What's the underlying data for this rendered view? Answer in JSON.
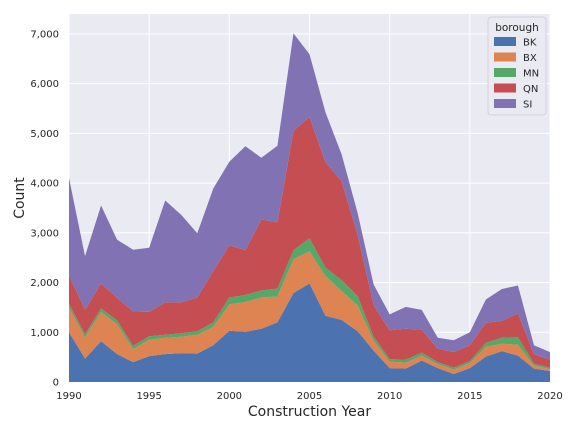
{
  "chart_data": {
    "type": "area",
    "stacked": true,
    "xlabel": "Construction Year",
    "ylabel": "Count",
    "xlim": [
      1990,
      2020
    ],
    "ylim": [
      0,
      7400
    ],
    "xticks": [
      1990,
      1995,
      2000,
      2005,
      2010,
      2015,
      2020
    ],
    "xtick_labels": [
      "1990",
      "1995",
      "2000",
      "2005",
      "2010",
      "2015",
      "2020"
    ],
    "yticks": [
      0,
      1000,
      2000,
      3000,
      4000,
      5000,
      6000,
      7000
    ],
    "ytick_labels": [
      "0",
      "1,000",
      "2,000",
      "3,000",
      "4,000",
      "5,000",
      "6,000",
      "7,000"
    ],
    "grid": true,
    "legend": {
      "title": "borough",
      "placement": "top-right"
    },
    "x": [
      1990,
      1991,
      1992,
      1993,
      1994,
      1995,
      1996,
      1997,
      1998,
      1999,
      2000,
      2001,
      2002,
      2003,
      2004,
      2005,
      2006,
      2007,
      2008,
      2009,
      2010,
      2011,
      2012,
      2013,
      2014,
      2015,
      2016,
      2017,
      2018,
      2019,
      2020
    ],
    "series": [
      {
        "name": "BK",
        "color": "#4c72b0",
        "values": [
          1000,
          470,
          820,
          560,
          400,
          520,
          560,
          580,
          570,
          740,
          1030,
          1010,
          1070,
          1200,
          1790,
          1980,
          1330,
          1250,
          1020,
          630,
          280,
          270,
          430,
          280,
          160,
          280,
          510,
          620,
          530,
          270,
          220
        ]
      },
      {
        "name": "BX",
        "color": "#dd8452",
        "values": [
          500,
          430,
          590,
          600,
          260,
          330,
          330,
          330,
          380,
          370,
          530,
          600,
          630,
          520,
          680,
          650,
          800,
          580,
          520,
          200,
          130,
          120,
          100,
          80,
          90,
          100,
          200,
          150,
          220,
          60,
          40
        ]
      },
      {
        "name": "MN",
        "color": "#55a868",
        "values": [
          70,
          60,
          70,
          80,
          70,
          70,
          60,
          70,
          70,
          90,
          140,
          140,
          140,
          160,
          180,
          260,
          170,
          220,
          190,
          80,
          50,
          60,
          60,
          40,
          40,
          40,
          80,
          120,
          150,
          40,
          30
        ]
      },
      {
        "name": "QN",
        "color": "#c44e52",
        "values": [
          580,
          490,
          500,
          450,
          690,
          490,
          650,
          620,
          680,
          1030,
          1050,
          900,
          1430,
          1330,
          2400,
          2440,
          2120,
          1990,
          1230,
          630,
          580,
          620,
          460,
          270,
          310,
          320,
          400,
          340,
          480,
          190,
          160
        ]
      },
      {
        "name": "SI",
        "color": "#8172b3",
        "values": [
          1950,
          1080,
          1570,
          1170,
          1240,
          1290,
          2050,
          1760,
          1290,
          1660,
          1680,
          2090,
          1240,
          1540,
          1960,
          1260,
          1000,
          540,
          440,
          420,
          320,
          440,
          400,
          220,
          240,
          260,
          470,
          640,
          560,
          180,
          150
        ]
      }
    ]
  }
}
